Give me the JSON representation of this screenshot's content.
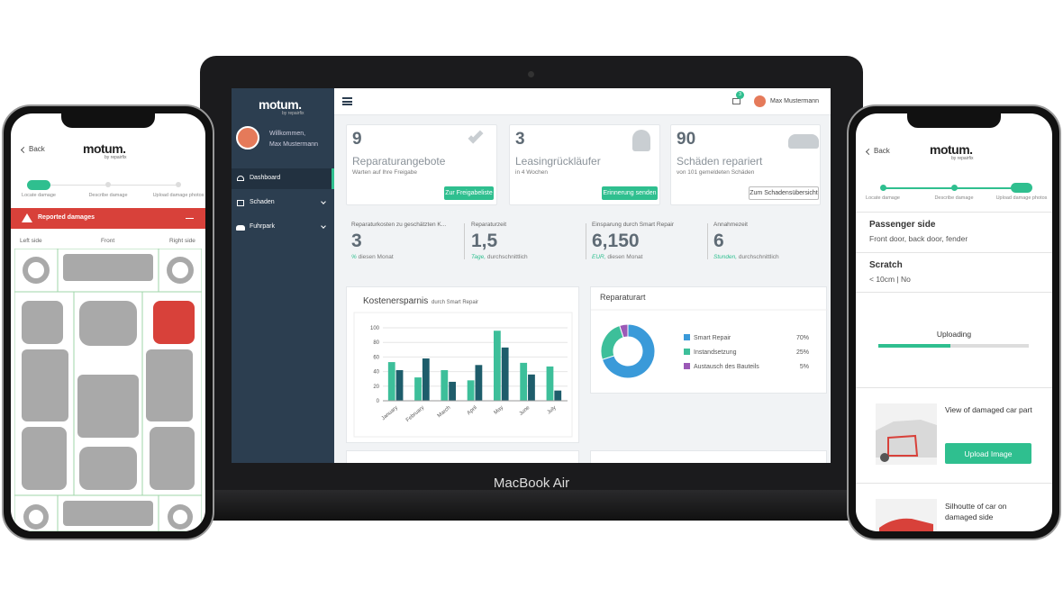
{
  "laptop": {
    "brand": "MacBook Air",
    "sidebar": {
      "logo": "motum.",
      "logo_sub": "by repairfix",
      "greeting": "Willkommen,",
      "user": "Max Mustermann",
      "nav": [
        "Dashboard",
        "Schaden",
        "Fuhrpark"
      ]
    },
    "topbar": {
      "badge": "3",
      "user": "Max Mustermann"
    },
    "cards": [
      {
        "value": "9",
        "title": "Reparaturangebote",
        "subtitle": "Warten auf Ihre Freigabe",
        "button": "Zur Freigabeliste"
      },
      {
        "value": "3",
        "title": "Leasingrückläufer",
        "subtitle": "in 4 Wochen",
        "button": "Erinnerung senden"
      },
      {
        "value": "90",
        "title": "Schäden repariert",
        "subtitle": "von 101 gemeldeten Schäden",
        "button": "Zum Schadensübersicht"
      }
    ],
    "stats": [
      {
        "label": "Reparaturkosten zu geschätzten K...",
        "value": "3",
        "unit": "%",
        "period": "diesen Monat"
      },
      {
        "label": "Reparaturzeit",
        "value": "1,5",
        "unit": "Tage,",
        "period": "durchschnittlich"
      },
      {
        "label": "Einsparung durch Smart Repair",
        "value": "6,150",
        "unit": "EUR,",
        "period": "diesen Monat"
      },
      {
        "label": "Annahmezeit",
        "value": "6",
        "unit": "Stunden,",
        "period": "durchschnittlich"
      }
    ]
  },
  "chart_data": [
    {
      "type": "bar",
      "title": "Kostenersparnis",
      "subtitle": "durch Smart Repair",
      "categories": [
        "January",
        "February",
        "March",
        "April",
        "May",
        "June",
        "July"
      ],
      "series": [
        {
          "color": "#3dbf9a",
          "values": [
            53,
            32,
            42,
            28,
            96,
            52,
            47
          ]
        },
        {
          "color": "#1e5d6b",
          "values": [
            42,
            58,
            26,
            49,
            73,
            36,
            14
          ]
        }
      ],
      "ylim": [
        0,
        100
      ],
      "yticks": [
        0,
        20,
        40,
        60,
        80,
        100
      ],
      "grid": true
    },
    {
      "type": "pie",
      "title": "Reparaturart",
      "categories": [
        "Smart Repair",
        "Instandsetzung",
        "Austausch des Bauteils"
      ],
      "values": [
        70,
        25,
        5
      ],
      "value_labels": [
        "70%",
        "25%",
        "5%"
      ],
      "colors": [
        "#3a9ad9",
        "#3dbf9a",
        "#9b59b6"
      ]
    }
  ],
  "left_phone": {
    "back": "Back",
    "logo": "motum.",
    "logo_sub": "by repairfix",
    "steps": [
      "Locate damage",
      "Describe damage",
      "Upload damage photos"
    ],
    "banner": "Reported damages",
    "views": [
      "Left side",
      "Front",
      "Right side"
    ]
  },
  "right_phone": {
    "back": "Back",
    "logo": "motum.",
    "logo_sub": "by repairfix",
    "steps": [
      "Locate damage",
      "Describe damage",
      "Upload damage photos"
    ],
    "location_title": "Passenger side",
    "location_detail": "Front door, back door, fender",
    "damage_title": "Scratch",
    "damage_detail": "< 10cm | No",
    "upload_status": "Uploading",
    "photo_items": [
      {
        "label": "View of damaged car part",
        "button": "Upload Image"
      },
      {
        "label": "Silhoutte of car on damaged side"
      }
    ]
  }
}
